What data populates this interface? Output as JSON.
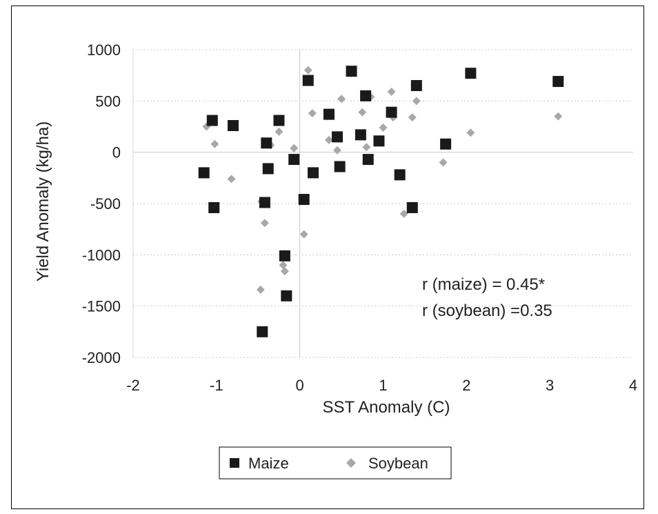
{
  "chart_data": {
    "type": "scatter",
    "title": "",
    "xlabel": "SST Anomaly (C)",
    "ylabel": "Yield Anomaly (kg/ha)",
    "xlim": [
      -2,
      4
    ],
    "ylim": [
      -2000,
      1000
    ],
    "xticks": [
      "-2",
      "-1",
      "0",
      "1",
      "2",
      "3",
      "4"
    ],
    "yticks": [
      "1000",
      "500",
      "0",
      "-500",
      "-1000",
      "-1500",
      "-2000"
    ],
    "grid": true,
    "legend_position": "bottom",
    "annotations": [
      "r (maize) = 0.45*",
      "r (soybean) =0.35"
    ],
    "series": [
      {
        "name": "Maize",
        "marker": "square",
        "color": "#1a1a1a",
        "points": [
          {
            "x": -1.15,
            "y": -200
          },
          {
            "x": -1.05,
            "y": 310
          },
          {
            "x": -1.03,
            "y": -540
          },
          {
            "x": -0.8,
            "y": 260
          },
          {
            "x": -0.45,
            "y": -1750
          },
          {
            "x": -0.42,
            "y": -490
          },
          {
            "x": -0.4,
            "y": 90
          },
          {
            "x": -0.38,
            "y": -160
          },
          {
            "x": -0.25,
            "y": 310
          },
          {
            "x": -0.18,
            "y": -1010
          },
          {
            "x": -0.16,
            "y": -1400
          },
          {
            "x": -0.07,
            "y": -70
          },
          {
            "x": 0.05,
            "y": -460
          },
          {
            "x": 0.1,
            "y": 700
          },
          {
            "x": 0.16,
            "y": -200
          },
          {
            "x": 0.35,
            "y": 370
          },
          {
            "x": 0.45,
            "y": 150
          },
          {
            "x": 0.48,
            "y": -140
          },
          {
            "x": 0.62,
            "y": 790
          },
          {
            "x": 0.73,
            "y": 170
          },
          {
            "x": 0.79,
            "y": 550
          },
          {
            "x": 0.82,
            "y": -70
          },
          {
            "x": 0.95,
            "y": 110
          },
          {
            "x": 1.1,
            "y": 390
          },
          {
            "x": 1.2,
            "y": -220
          },
          {
            "x": 1.35,
            "y": -540
          },
          {
            "x": 1.4,
            "y": 650
          },
          {
            "x": 1.75,
            "y": 80
          },
          {
            "x": 2.05,
            "y": 770
          },
          {
            "x": 3.1,
            "y": 690
          }
        ]
      },
      {
        "name": "Soybean",
        "marker": "diamond",
        "color": "#a8a8a8",
        "points": [
          {
            "x": -1.12,
            "y": 250
          },
          {
            "x": -1.02,
            "y": 80
          },
          {
            "x": -0.82,
            "y": -260
          },
          {
            "x": -0.47,
            "y": -1340
          },
          {
            "x": -0.46,
            "y": -480
          },
          {
            "x": -0.42,
            "y": -690
          },
          {
            "x": -0.35,
            "y": 70
          },
          {
            "x": -0.25,
            "y": 200
          },
          {
            "x": -0.2,
            "y": -1100
          },
          {
            "x": -0.18,
            "y": -1160
          },
          {
            "x": -0.07,
            "y": 40
          },
          {
            "x": 0.05,
            "y": -800
          },
          {
            "x": 0.1,
            "y": 800
          },
          {
            "x": 0.15,
            "y": 380
          },
          {
            "x": 0.35,
            "y": 120
          },
          {
            "x": 0.45,
            "y": 20
          },
          {
            "x": 0.5,
            "y": 520
          },
          {
            "x": 0.62,
            "y": 770
          },
          {
            "x": 0.75,
            "y": 390
          },
          {
            "x": 0.8,
            "y": 50
          },
          {
            "x": 0.85,
            "y": 540
          },
          {
            "x": 1.0,
            "y": 240
          },
          {
            "x": 1.1,
            "y": 590
          },
          {
            "x": 1.12,
            "y": 340
          },
          {
            "x": 1.25,
            "y": -600
          },
          {
            "x": 1.35,
            "y": 340
          },
          {
            "x": 1.4,
            "y": 500
          },
          {
            "x": 1.72,
            "y": -100
          },
          {
            "x": 2.05,
            "y": 190
          },
          {
            "x": 3.1,
            "y": 350
          }
        ]
      }
    ]
  }
}
